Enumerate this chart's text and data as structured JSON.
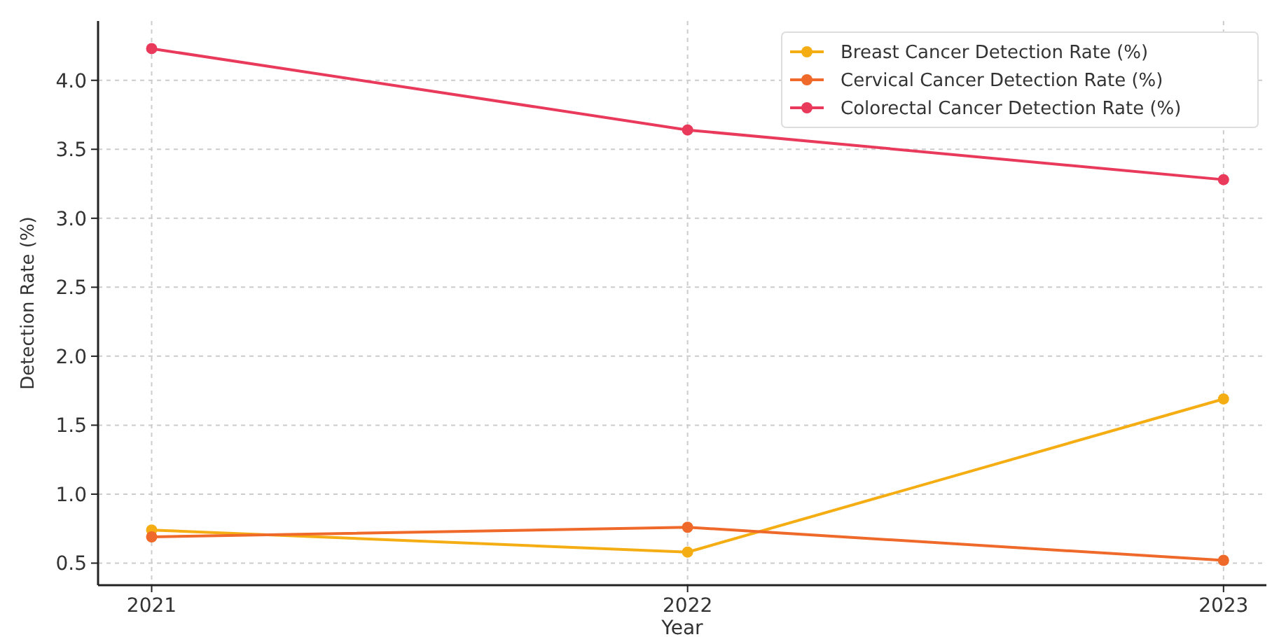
{
  "chart_data": {
    "type": "line",
    "xlabel": "Year",
    "ylabel": "Detection Rate (%)",
    "x": [
      2021,
      2022,
      2023
    ],
    "xlim": [
      2020.9,
      2023.08
    ],
    "xticks": [
      2021,
      2022,
      2023
    ],
    "ylim": [
      0.34,
      4.43
    ],
    "yticks": [
      {
        "value": 0.5,
        "label": "0.5"
      },
      {
        "value": 1,
        "label": "1.0"
      },
      {
        "value": 1.5,
        "label": "1.5"
      },
      {
        "value": 2,
        "label": "2.0"
      },
      {
        "value": 2.5,
        "label": "2.5"
      },
      {
        "value": 3,
        "label": "3.0"
      },
      {
        "value": 3.5,
        "label": "3.5"
      },
      {
        "value": 4,
        "label": "4.0"
      }
    ],
    "series": [
      {
        "name": "Breast Cancer Detection Rate (%)",
        "color": "#f5ad14",
        "values": [
          0.74,
          0.58,
          1.69
        ]
      },
      {
        "name": "Cervical Cancer Detection Rate (%)",
        "color": "#ef6a2a",
        "values": [
          0.69,
          0.76,
          0.52
        ]
      },
      {
        "name": "Colorectal Cancer Detection Rate (%)",
        "color": "#e93a5c",
        "values": [
          4.23,
          3.64,
          3.28
        ]
      }
    ],
    "grid": true,
    "legend": "top right",
    "marker": "circle",
    "line_style": "solid"
  }
}
